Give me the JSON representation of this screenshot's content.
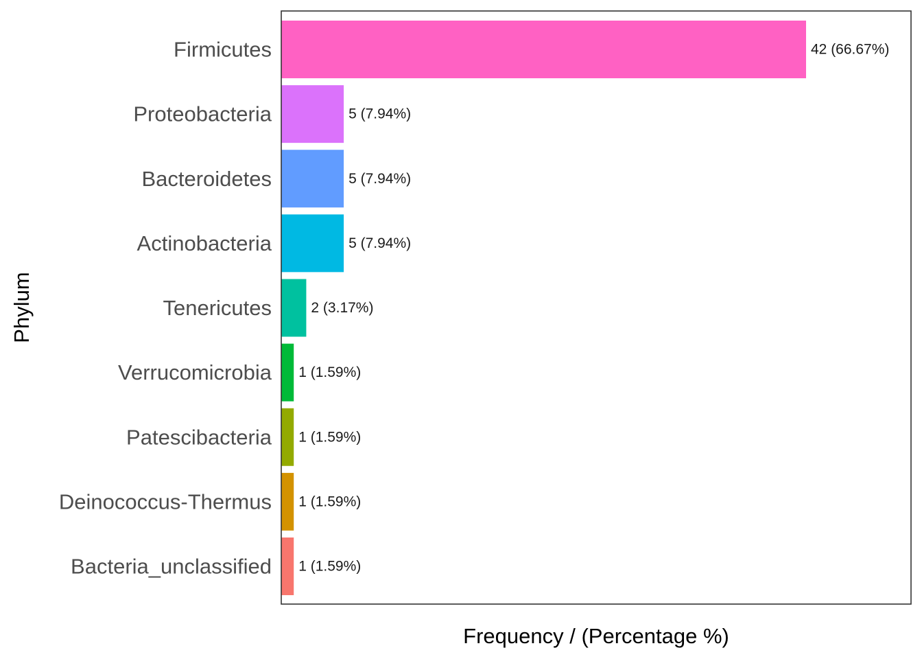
{
  "chart_data": {
    "type": "bar",
    "orientation": "horizontal",
    "categories": [
      "Firmicutes",
      "Proteobacteria",
      "Bacteroidetes",
      "Actinobacteria",
      "Tenericutes",
      "Verrucomicrobia",
      "Patescibacteria",
      "Deinococcus-Thermus",
      "Bacteria_unclassified"
    ],
    "values": [
      42,
      5,
      5,
      5,
      2,
      1,
      1,
      1,
      1
    ],
    "value_labels": [
      "42 (66.67%)",
      "5 (7.94%)",
      "5 (7.94%)",
      "5 (7.94%)",
      "2 (3.17%)",
      "1 (1.59%)",
      "1 (1.59%)",
      "1 (1.59%)",
      "1 (1.59%)"
    ],
    "colors": [
      "#FF61C3",
      "#DB72FB",
      "#619CFF",
      "#00B9E3",
      "#00C19F",
      "#00BA38",
      "#93AA00",
      "#D39200",
      "#F8766D"
    ],
    "xlabel": "Frequency / (Percentage %)",
    "ylabel": "Phylum",
    "xlim": [
      0,
      50.4
    ],
    "grid": false,
    "legend": "none"
  }
}
